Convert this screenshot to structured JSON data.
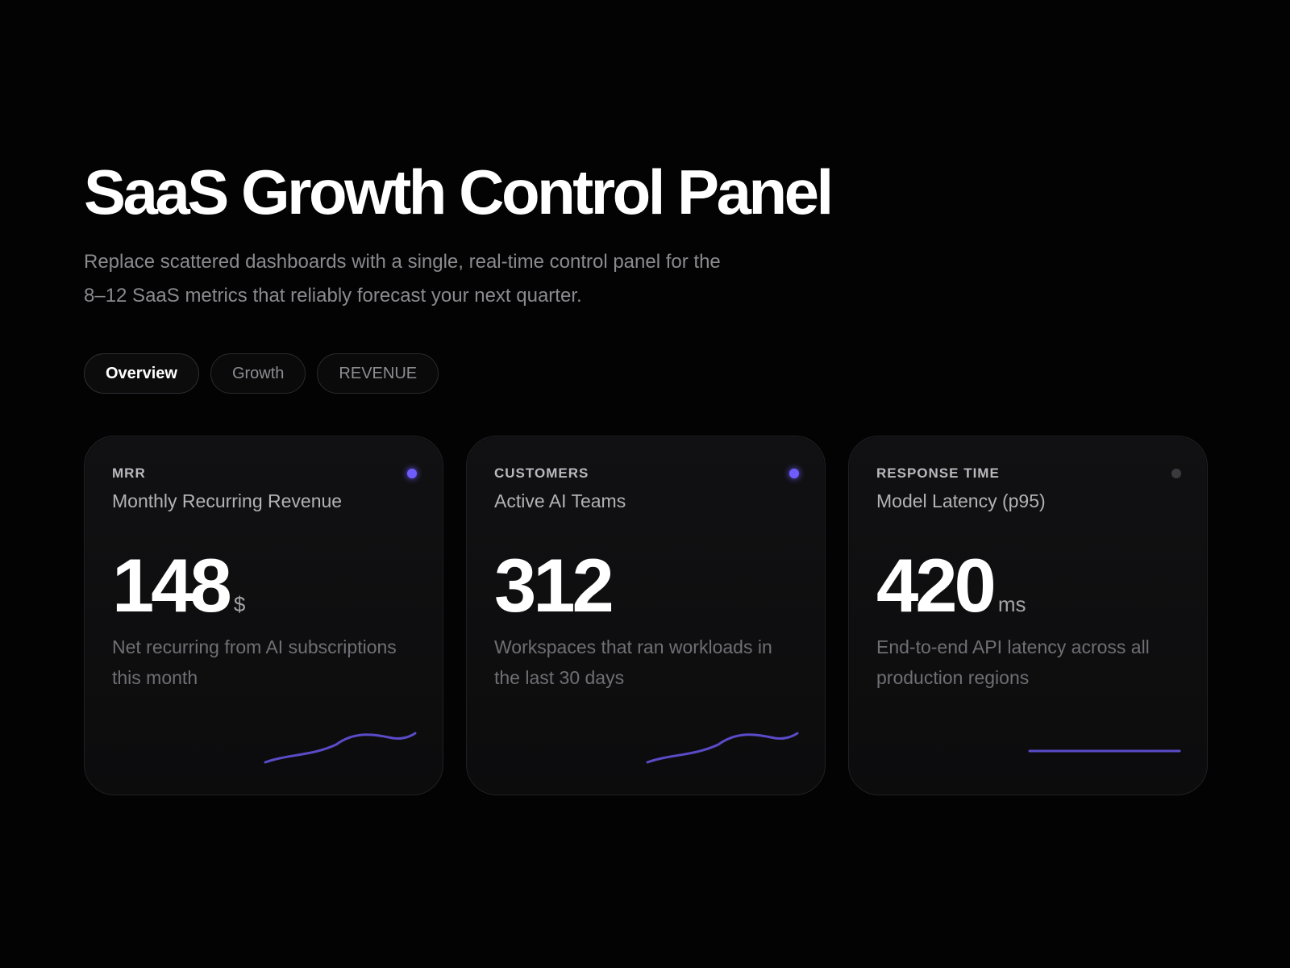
{
  "hero": {
    "title": "SaaS Growth Control Panel",
    "subtitle": "Replace scattered dashboards with a single, real-time control panel for the 8–12 SaaS metrics that reliably forecast your next quarter."
  },
  "tabs": [
    {
      "label": "Overview",
      "active": true
    },
    {
      "label": "Growth",
      "active": false
    },
    {
      "label": "REVENUE",
      "active": false
    }
  ],
  "colors": {
    "accent": "#6a5ae0",
    "dot_active": "#6f5cff",
    "dot_inactive": "#3a3a3e"
  },
  "cards": [
    {
      "eyebrow": "MRR",
      "title": "Monthly Recurring Revenue",
      "value": "148",
      "unit": "$",
      "description": "Net recurring from AI subscriptions this month",
      "status_dot": "active",
      "sparkline": "rising-curve"
    },
    {
      "eyebrow": "CUSTOMERS",
      "title": "Active AI Teams",
      "value": "312",
      "unit": "",
      "description": "Workspaces that ran workloads in the last 30 days",
      "status_dot": "active",
      "sparkline": "rising-curve"
    },
    {
      "eyebrow": "RESPONSE TIME",
      "title": "Model Latency (p95)",
      "value": "420",
      "unit": "ms",
      "description": "End-to-end API latency across all production regions",
      "status_dot": "inactive",
      "sparkline": "flat-line"
    }
  ]
}
